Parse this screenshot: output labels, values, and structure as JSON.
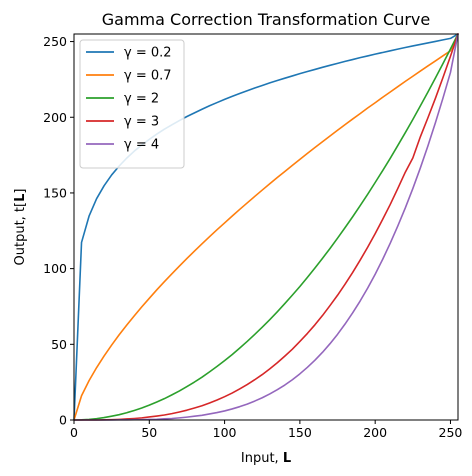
{
  "chart_data": {
    "type": "line",
    "title": "Gamma Correction Transformation Curve",
    "xlabel": {
      "prefix": "Input, ",
      "bold": "L"
    },
    "ylabel": {
      "prefix": "Output, t[",
      "bold": "L",
      "suffix": "]"
    },
    "xlim": [
      0,
      255
    ],
    "ylim": [
      0,
      255
    ],
    "xticks": [
      0,
      50,
      100,
      150,
      200,
      250
    ],
    "yticks": [
      0,
      50,
      100,
      150,
      200,
      250
    ],
    "grid": false,
    "legend_position": "top-left",
    "x": [
      0,
      5,
      10,
      15,
      20,
      25,
      30,
      35,
      40,
      45,
      50,
      55,
      60,
      65,
      70,
      75,
      80,
      85,
      90,
      95,
      100,
      105,
      110,
      115,
      120,
      125,
      130,
      135,
      140,
      145,
      150,
      155,
      160,
      165,
      170,
      175,
      180,
      185,
      190,
      195,
      200,
      205,
      210,
      215,
      220,
      225,
      230,
      235,
      240,
      245,
      250,
      255
    ],
    "series": [
      {
        "name": "γ = 0.2",
        "gamma": 0.2,
        "color": "#1f77b4",
        "values": [
          0,
          117.3,
          134.7,
          146.2,
          154.8,
          161.9,
          167.8,
          173.0,
          177.6,
          181.7,
          185.4,
          188.9,
          192.1,
          195.0,
          197.8,
          200.5,
          202.9,
          205.3,
          207.6,
          209.7,
          211.8,
          213.8,
          215.7,
          217.5,
          219.3,
          221.0,
          222.7,
          224.3,
          225.8,
          227.3,
          228.8,
          230.2,
          231.6,
          233.0,
          234.3,
          235.6,
          236.9,
          238.1,
          239.4,
          240.5,
          241.7,
          242.8,
          243.9,
          245.0,
          246.1,
          247.1,
          248.1,
          249.1,
          250.1,
          251.1,
          252.1,
          255
        ]
      },
      {
        "name": "γ = 0.7",
        "gamma": 0.7,
        "color": "#ff7f0e",
        "values": [
          0,
          16.0,
          26.0,
          34.6,
          42.3,
          49.5,
          56.3,
          62.7,
          68.8,
          74.7,
          80.4,
          86.0,
          91.4,
          96.6,
          101.7,
          106.7,
          111.6,
          116.4,
          121.1,
          125.7,
          130.2,
          134.7,
          139.1,
          143.4,
          147.7,
          151.9,
          156.1,
          160.2,
          164.2,
          168.2,
          172.2,
          176.1,
          180.0,
          183.8,
          187.6,
          191.4,
          195.1,
          198.8,
          202.4,
          206.1,
          209.6,
          213.2,
          216.7,
          220.2,
          223.7,
          227.1,
          230.5,
          233.9,
          237.2,
          240.6,
          243.9,
          255
        ]
      },
      {
        "name": "γ = 2",
        "gamma": 2,
        "color": "#2ca02c",
        "values": [
          0,
          0.1,
          0.4,
          0.9,
          1.6,
          2.5,
          3.5,
          4.8,
          6.3,
          7.9,
          9.8,
          11.9,
          14.1,
          16.6,
          19.2,
          22.1,
          25.1,
          28.3,
          31.8,
          35.4,
          39.2,
          43.2,
          47.5,
          51.9,
          56.5,
          61.3,
          66.3,
          71.5,
          76.9,
          82.5,
          88.2,
          94.2,
          100.4,
          106.8,
          113.3,
          120.1,
          127.1,
          134.2,
          141.6,
          149.1,
          156.9,
          164.8,
          172.9,
          181.3,
          189.8,
          198.5,
          207.5,
          216.6,
          225.9,
          235.4,
          245.1,
          255
        ]
      },
      {
        "name": "γ = 3",
        "gamma": 3,
        "color": "#d62728",
        "values": [
          0,
          0,
          0,
          0,
          0.1,
          0.2,
          0.4,
          0.7,
          1.0,
          1.4,
          2.0,
          2.6,
          3.3,
          4.2,
          5.3,
          6.5,
          7.9,
          9.4,
          11.2,
          13.2,
          15.4,
          17.8,
          20.5,
          23.4,
          26.6,
          30.0,
          33.8,
          37.8,
          42.2,
          46.8,
          51.9,
          57.2,
          62.9,
          69.0,
          75.6,
          82.4,
          89.7,
          97.4,
          105.6,
          114.1,
          123.1,
          132.6,
          142.4,
          152.9,
          163.7,
          173.1,
          187.1,
          199.6,
          212.5,
          226.2,
          240.3,
          255
        ]
      },
      {
        "name": "γ = 4",
        "gamma": 4,
        "color": "#9467bd",
        "values": [
          0,
          0,
          0,
          0,
          0,
          0,
          0.1,
          0.1,
          0.2,
          0.2,
          0.4,
          0.5,
          0.8,
          1.0,
          1.4,
          1.9,
          2.5,
          3.1,
          4.0,
          4.9,
          6.0,
          7.3,
          8.8,
          10.5,
          12.5,
          14.7,
          17.2,
          20.0,
          23.1,
          26.6,
          30.5,
          34.8,
          39.5,
          44.7,
          50.4,
          56.6,
          63.4,
          70.7,
          78.6,
          87.1,
          96.3,
          106.2,
          116.8,
          128.1,
          140.1,
          152.9,
          166.5,
          181.0,
          196.4,
          212.6,
          229.6,
          255
        ]
      }
    ]
  }
}
